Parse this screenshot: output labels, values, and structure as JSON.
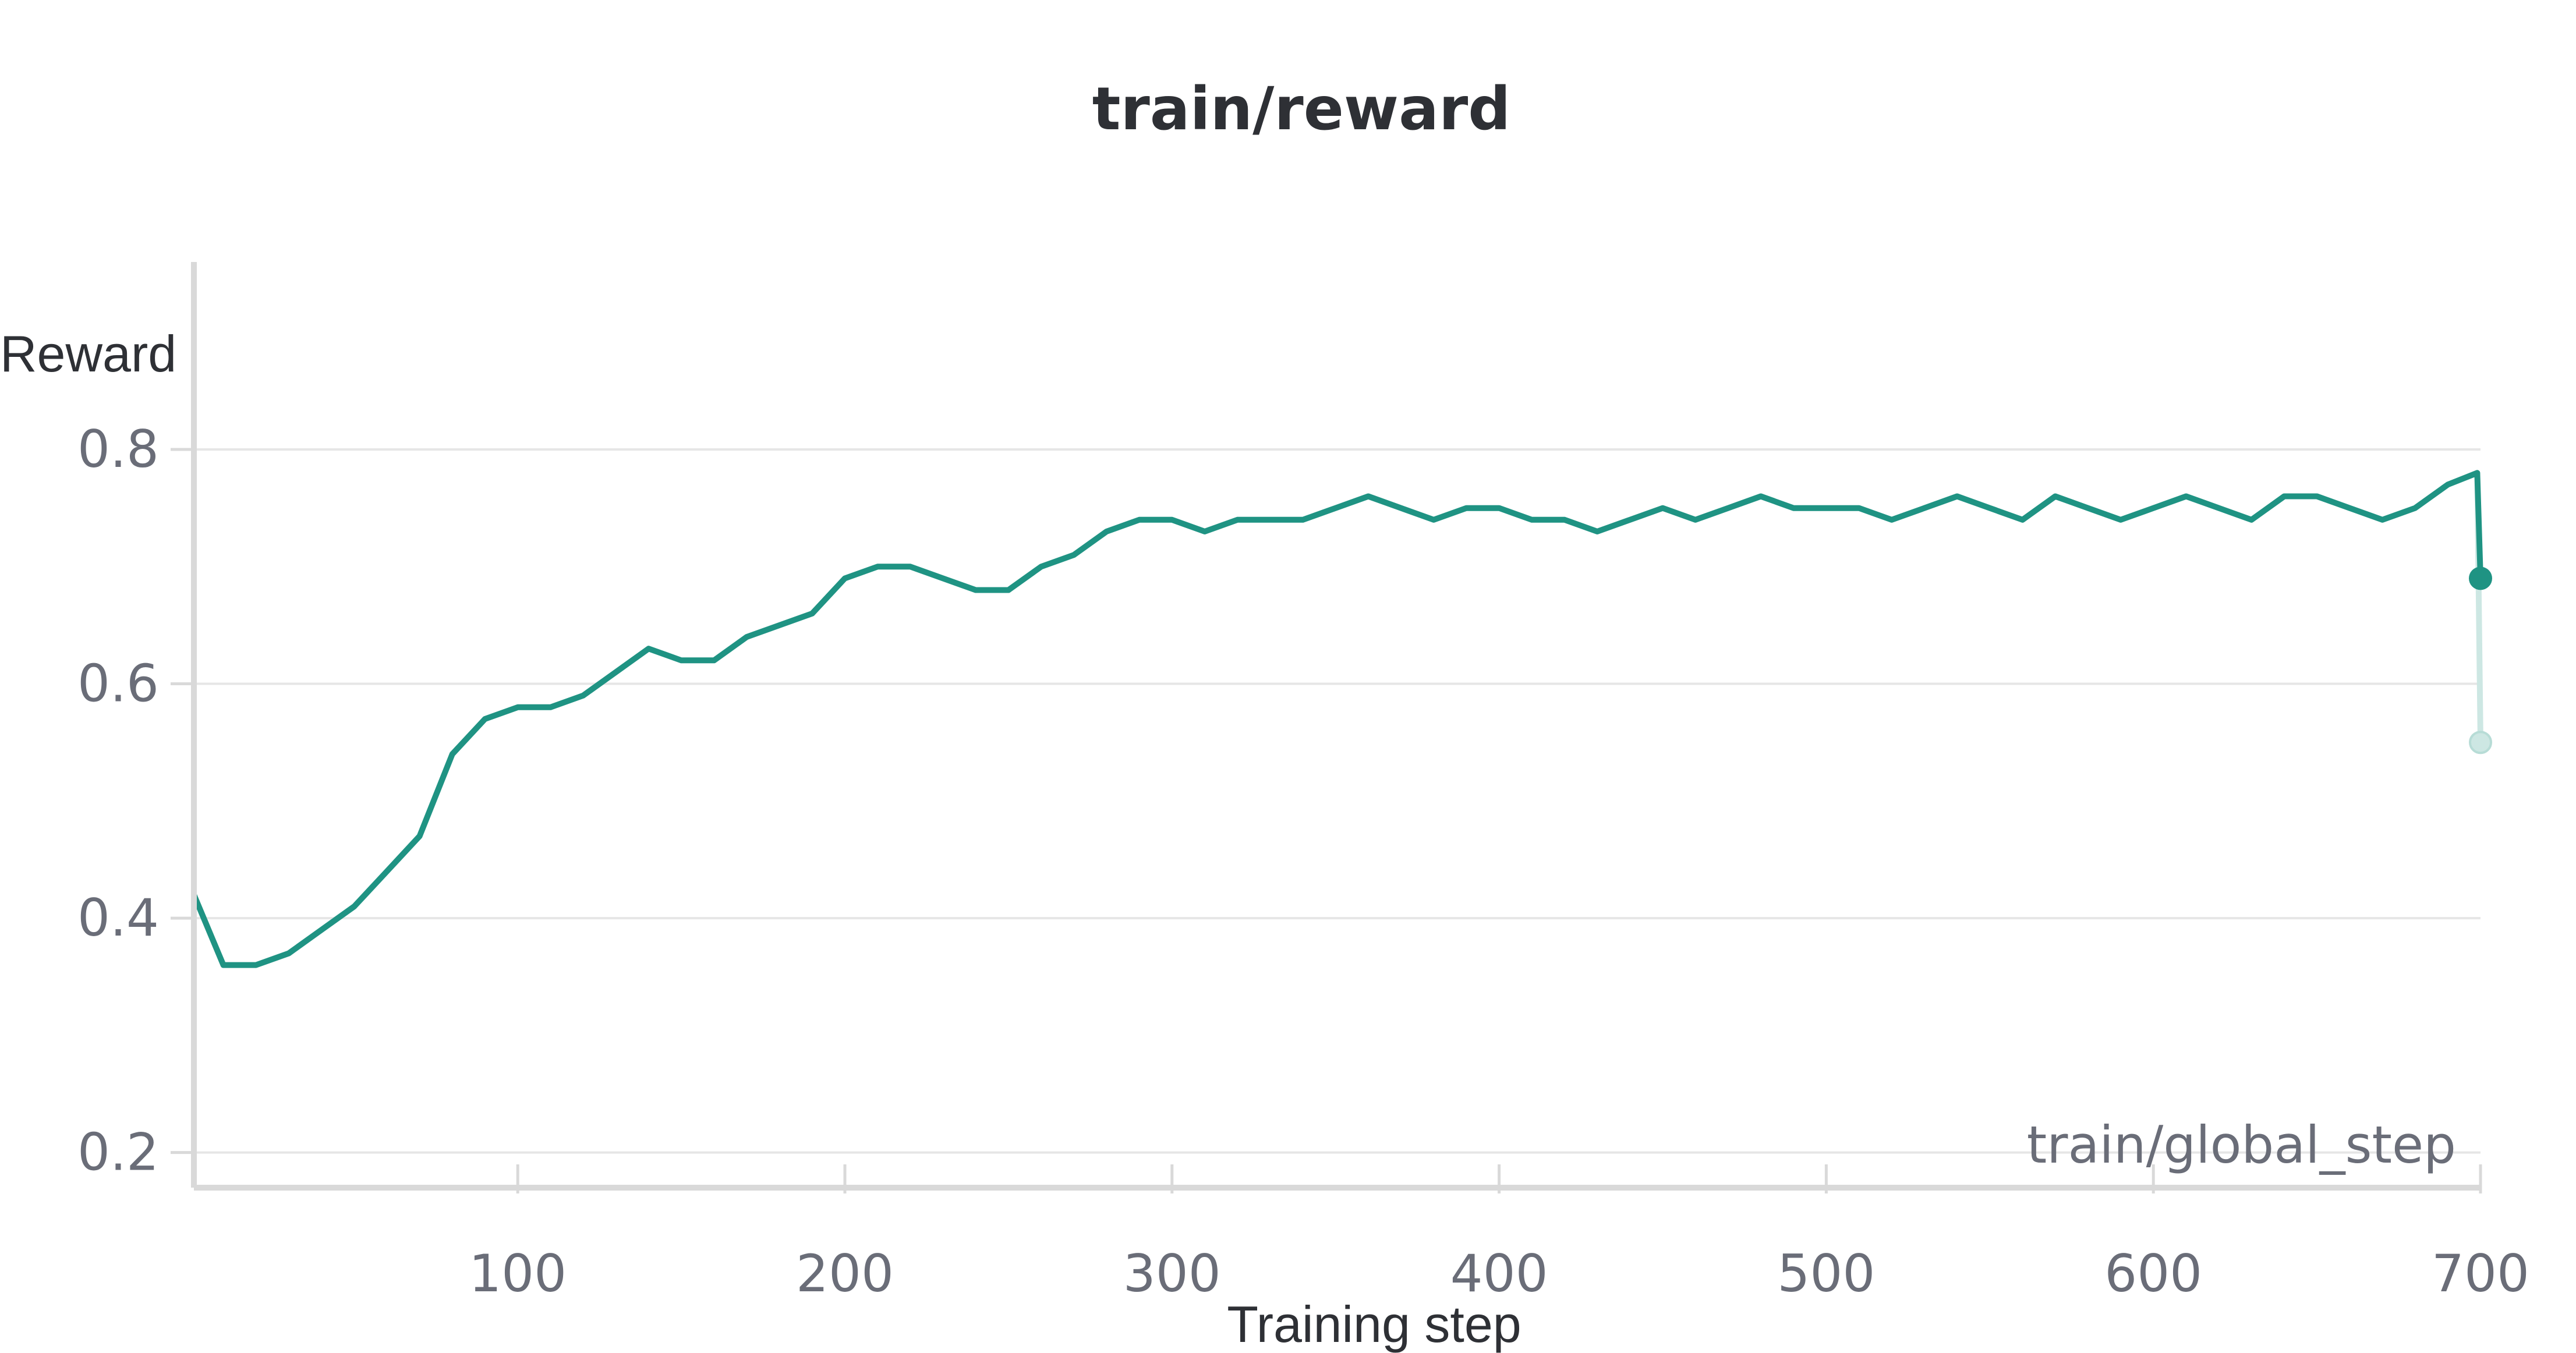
{
  "chart_data": {
    "type": "line",
    "title": "train/reward",
    "ylabel": "Reward",
    "xlabel": "Training step",
    "x_key_label": "train/global_step",
    "xlim": [
      1,
      700
    ],
    "ylim": [
      0.17,
      0.96
    ],
    "x_ticks": [
      100,
      200,
      300,
      400,
      500,
      600,
      700
    ],
    "x_tick_labels": [
      "100",
      "200",
      "300",
      "400",
      "500",
      "600",
      "700"
    ],
    "y_ticks": [
      0.2,
      0.4,
      0.6,
      0.8
    ],
    "y_tick_labels": [
      "0.2",
      "0.4",
      "0.6",
      "0.8"
    ],
    "grid": true,
    "colors": {
      "smoothed": "#1f9383",
      "raw": "#cde7e3",
      "grid": "#e6e6e6",
      "axis": "#d9d9d9",
      "tick_text": "#6a6d78",
      "title_text": "#2e3035"
    },
    "series": [
      {
        "kind": "smoothed",
        "x": [
          1,
          10,
          20,
          30,
          40,
          50,
          60,
          70,
          80,
          90,
          100,
          110,
          120,
          130,
          140,
          150,
          160,
          170,
          180,
          190,
          200,
          210,
          220,
          230,
          240,
          250,
          260,
          270,
          280,
          290,
          300,
          310,
          320,
          330,
          340,
          350,
          360,
          370,
          380,
          390,
          400,
          410,
          420,
          430,
          440,
          450,
          460,
          470,
          480,
          490,
          500,
          510,
          520,
          530,
          540,
          550,
          560,
          570,
          580,
          590,
          600,
          610,
          620,
          630,
          640,
          650,
          660,
          670,
          680,
          690,
          699,
          700
        ],
        "y": [
          0.42,
          0.36,
          0.36,
          0.37,
          0.39,
          0.41,
          0.44,
          0.47,
          0.54,
          0.57,
          0.58,
          0.58,
          0.59,
          0.61,
          0.63,
          0.62,
          0.62,
          0.64,
          0.65,
          0.66,
          0.69,
          0.7,
          0.7,
          0.69,
          0.68,
          0.68,
          0.7,
          0.71,
          0.73,
          0.74,
          0.74,
          0.73,
          0.74,
          0.74,
          0.74,
          0.75,
          0.76,
          0.75,
          0.74,
          0.75,
          0.75,
          0.74,
          0.74,
          0.73,
          0.74,
          0.75,
          0.74,
          0.75,
          0.76,
          0.75,
          0.75,
          0.75,
          0.74,
          0.75,
          0.76,
          0.75,
          0.74,
          0.76,
          0.75,
          0.74,
          0.75,
          0.76,
          0.75,
          0.74,
          0.76,
          0.76,
          0.75,
          0.74,
          0.75,
          0.77,
          0.78,
          0.69
        ]
      },
      {
        "kind": "raw",
        "x": [
          1,
          10,
          20,
          30,
          40,
          50,
          60,
          70,
          80,
          90,
          100,
          110,
          120,
          130,
          140,
          150,
          160,
          170,
          180,
          190,
          200,
          210,
          220,
          230,
          240,
          250,
          260,
          270,
          280,
          290,
          300,
          310,
          320,
          330,
          340,
          350,
          360,
          370,
          380,
          390,
          400,
          410,
          420,
          430,
          440,
          450,
          460,
          470,
          480,
          490,
          500,
          510,
          520,
          530,
          540,
          550,
          560,
          570,
          580,
          590,
          600,
          610,
          620,
          630,
          640,
          650,
          660,
          670,
          680,
          690,
          699,
          700
        ],
        "y": [
          0.42,
          0.36,
          0.36,
          0.37,
          0.39,
          0.41,
          0.44,
          0.47,
          0.54,
          0.57,
          0.58,
          0.58,
          0.59,
          0.61,
          0.63,
          0.62,
          0.62,
          0.64,
          0.65,
          0.66,
          0.69,
          0.7,
          0.7,
          0.69,
          0.68,
          0.68,
          0.7,
          0.71,
          0.73,
          0.74,
          0.74,
          0.73,
          0.74,
          0.74,
          0.74,
          0.75,
          0.76,
          0.75,
          0.74,
          0.75,
          0.75,
          0.74,
          0.74,
          0.73,
          0.74,
          0.75,
          0.74,
          0.75,
          0.76,
          0.75,
          0.75,
          0.75,
          0.74,
          0.75,
          0.76,
          0.75,
          0.74,
          0.76,
          0.75,
          0.74,
          0.75,
          0.76,
          0.75,
          0.74,
          0.76,
          0.76,
          0.75,
          0.74,
          0.75,
          0.77,
          0.78,
          0.55
        ]
      }
    ],
    "last_point": {
      "x": 700,
      "smoothed": 0.69,
      "raw": 0.55
    }
  }
}
